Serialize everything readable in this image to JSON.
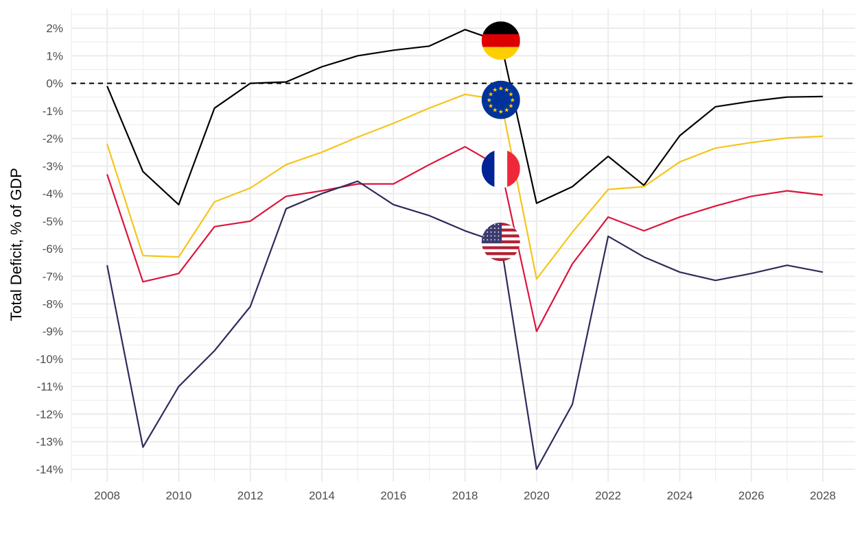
{
  "chart_data": {
    "type": "line",
    "title": "",
    "xlabel": "",
    "ylabel": "Total Deficit, % of GDP",
    "xlim": [
      2007.0,
      2028.9
    ],
    "ylim": [
      -14.45,
      2.7
    ],
    "x_ticks": [
      2008,
      2010,
      2012,
      2014,
      2016,
      2018,
      2020,
      2022,
      2024,
      2026,
      2028
    ],
    "y_ticks": [
      2,
      1,
      0,
      -1,
      -2,
      -3,
      -4,
      -5,
      -6,
      -7,
      -8,
      -9,
      -10,
      -11,
      -12,
      -13,
      -14
    ],
    "y_tick_labels": [
      "2%",
      "1%",
      "0%",
      "-1%",
      "-2%",
      "-3%",
      "-4%",
      "-5%",
      "-6%",
      "-7%",
      "-8%",
      "-9%",
      "-10%",
      "-11%",
      "-12%",
      "-13%",
      "-14%"
    ],
    "x_tick_labels": [
      "2008",
      "2010",
      "2012",
      "2014",
      "2016",
      "2018",
      "2020",
      "2022",
      "2024",
      "2026",
      "2028"
    ],
    "grid": true,
    "reference_line": {
      "y": 0,
      "style": "dashed",
      "color": "#000000"
    },
    "x": [
      2008,
      2009,
      2010,
      2011,
      2012,
      2013,
      2014,
      2015,
      2016,
      2017,
      2018,
      2019,
      2020,
      2021,
      2022,
      2023,
      2024,
      2025,
      2026,
      2027,
      2028
    ],
    "series": [
      {
        "color": "#000000",
        "flag": "germany-flag",
        "values": [
          -0.1,
          -3.2,
          -4.4,
          -0.9,
          0.0,
          0.05,
          0.6,
          1.0,
          1.2,
          1.35,
          1.95,
          1.5,
          -4.35,
          -3.75,
          -2.65,
          -3.7,
          -1.9,
          -0.85,
          -0.65,
          -0.5,
          -0.48
        ]
      },
      {
        "color": "#f5c518",
        "flag": "eu-flag",
        "values": [
          -2.2,
          -6.25,
          -6.3,
          -4.3,
          -3.8,
          -2.95,
          -2.5,
          -1.95,
          -1.45,
          -0.9,
          -0.4,
          -0.6,
          -7.1,
          -5.4,
          -3.85,
          -3.75,
          -2.85,
          -2.35,
          -2.15,
          -1.98,
          -1.92
        ]
      },
      {
        "color": "#dc143c",
        "flag": "france-flag",
        "values": [
          -3.3,
          -7.2,
          -6.9,
          -5.2,
          -5.0,
          -4.1,
          -3.9,
          -3.65,
          -3.65,
          -2.95,
          -2.3,
          -3.05,
          -9.0,
          -6.55,
          -4.85,
          -5.35,
          -4.85,
          -4.45,
          -4.1,
          -3.9,
          -4.05
        ]
      },
      {
        "color": "#2b2b5c",
        "flag": "usa-flag",
        "values": [
          -6.6,
          -13.2,
          -11.0,
          -9.7,
          -8.1,
          -4.55,
          -4.0,
          -3.55,
          -4.4,
          -4.8,
          -5.35,
          -5.8,
          -14.0,
          -11.65,
          -5.55,
          -6.3,
          -6.85,
          -7.15,
          -6.9,
          -6.6,
          -6.85
        ]
      }
    ],
    "flag_markers": [
      {
        "x": 2019,
        "y": 1.55,
        "flag": "germany-flag"
      },
      {
        "x": 2019,
        "y": -0.6,
        "flag": "eu-flag"
      },
      {
        "x": 2019,
        "y": -3.1,
        "flag": "france-flag"
      },
      {
        "x": 2019,
        "y": -5.75,
        "flag": "usa-flag"
      }
    ]
  }
}
